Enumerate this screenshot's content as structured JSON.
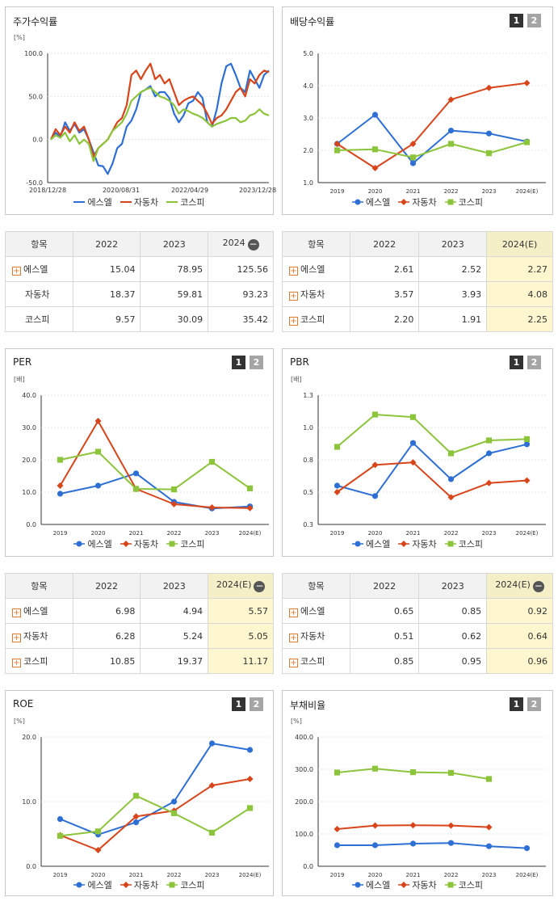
{
  "series_names": [
    "에스엘",
    "자동차",
    "코스피"
  ],
  "colors": {
    "s1": "#2e6fd6",
    "s2": "#d8451a",
    "s3": "#8cc43b"
  },
  "pager": [
    "1",
    "2"
  ],
  "chart_data": [
    {
      "id": "stock-return",
      "type": "line",
      "title": "주가수익률",
      "unit": "[%]",
      "xlabels": [
        "2018/12/28",
        "2020/08/31",
        "2022/04/29",
        "2023/12/28"
      ],
      "ylim": [
        -50,
        100
      ],
      "yticks": [
        "100.0",
        "50.0",
        "0.0",
        "-50.0"
      ],
      "series": [
        {
          "name": "에스엘",
          "values": [
            0,
            8,
            3,
            20,
            10,
            18,
            8,
            12,
            0,
            -15,
            -30,
            -31,
            -40,
            -28,
            -10,
            -5,
            15,
            22,
            35,
            55,
            58,
            62,
            50,
            55,
            55,
            48,
            30,
            20,
            28,
            42,
            45,
            55,
            48,
            20,
            15,
            35,
            65,
            85,
            88,
            75,
            60,
            55,
            80,
            70,
            60,
            75,
            80
          ]
        },
        {
          "name": "자동차",
          "values": [
            0,
            12,
            5,
            15,
            8,
            20,
            10,
            15,
            0,
            -20,
            -10,
            -5,
            0,
            10,
            20,
            25,
            40,
            75,
            80,
            70,
            80,
            88,
            70,
            75,
            65,
            70,
            55,
            40,
            45,
            48,
            50,
            45,
            40,
            30,
            18,
            25,
            28,
            35,
            45,
            55,
            60,
            50,
            70,
            65,
            75,
            80,
            78
          ]
        },
        {
          "name": "코스피",
          "values": [
            0,
            5,
            2,
            8,
            -2,
            5,
            -5,
            0,
            -5,
            -25,
            -10,
            -5,
            0,
            10,
            15,
            20,
            30,
            45,
            50,
            55,
            58,
            60,
            55,
            50,
            48,
            45,
            40,
            30,
            35,
            33,
            30,
            28,
            25,
            20,
            15,
            18,
            20,
            22,
            25,
            25,
            20,
            22,
            28,
            30,
            35,
            30,
            28
          ]
        }
      ]
    },
    {
      "id": "dividend",
      "type": "line",
      "title": "배당수익률",
      "categories": [
        "2019",
        "2020",
        "2021",
        "2022",
        "2023",
        "2024(E)"
      ],
      "ylim": [
        1,
        5
      ],
      "yticks": [
        "5.0",
        "4.0",
        "3.0",
        "2.0",
        "1.0"
      ],
      "series": [
        {
          "name": "에스엘",
          "values": [
            2.2,
            3.1,
            1.6,
            2.61,
            2.52,
            2.27
          ]
        },
        {
          "name": "자동차",
          "values": [
            2.2,
            1.45,
            2.2,
            3.57,
            3.93,
            4.08
          ]
        },
        {
          "name": "코스피",
          "values": [
            2.0,
            2.03,
            1.78,
            2.2,
            1.91,
            2.25
          ]
        }
      ]
    },
    {
      "id": "per",
      "type": "line",
      "title": "PER",
      "unit": "[배]",
      "categories": [
        "2019",
        "2020",
        "2021",
        "2022",
        "2023",
        "2024(E)"
      ],
      "ylim": [
        0,
        40
      ],
      "yticks": [
        "40.0",
        "30.0",
        "20.0",
        "10.0",
        "0.0"
      ],
      "series": [
        {
          "name": "에스엘",
          "values": [
            9.5,
            12,
            15.8,
            6.98,
            4.94,
            5.57
          ]
        },
        {
          "name": "자동차",
          "values": [
            12,
            32,
            11,
            6.28,
            5.24,
            5.05
          ]
        },
        {
          "name": "코스피",
          "values": [
            20,
            22.5,
            11,
            10.85,
            19.37,
            11.17
          ]
        }
      ]
    },
    {
      "id": "pbr",
      "type": "line",
      "title": "PBR",
      "unit": "[배]",
      "categories": [
        "2019",
        "2020",
        "2021",
        "2022",
        "2023",
        "2024(E)"
      ],
      "ylim": [
        0.3,
        1.3
      ],
      "yticks": [
        "1.3",
        "1.0",
        "0.8",
        "0.5",
        "0.3"
      ],
      "series": [
        {
          "name": "에스엘",
          "values": [
            0.6,
            0.52,
            0.93,
            0.65,
            0.85,
            0.92
          ]
        },
        {
          "name": "자동차",
          "values": [
            0.55,
            0.76,
            0.78,
            0.51,
            0.62,
            0.64
          ]
        },
        {
          "name": "코스피",
          "values": [
            0.9,
            1.15,
            1.13,
            0.85,
            0.95,
            0.96
          ]
        }
      ]
    },
    {
      "id": "roe",
      "type": "line",
      "title": "ROE",
      "unit": "[%]",
      "categories": [
        "2019",
        "2020",
        "2021",
        "2022",
        "2023",
        "2024(E)"
      ],
      "ylim": [
        0,
        20
      ],
      "yticks": [
        "20.0",
        "10.0",
        "0.0"
      ],
      "series": [
        {
          "name": "에스엘",
          "values": [
            7.3,
            4.9,
            6.8,
            10,
            19,
            18
          ]
        },
        {
          "name": "자동차",
          "values": [
            4.8,
            2.5,
            7.7,
            8.6,
            12.5,
            13.5
          ]
        },
        {
          "name": "코스피",
          "values": [
            4.7,
            5.4,
            10.9,
            8.2,
            5.2,
            9
          ]
        }
      ]
    },
    {
      "id": "debt",
      "type": "line",
      "title": "부채비율",
      "unit": "[%]",
      "categories": [
        "2019",
        "2020",
        "2021",
        "2022",
        "2023",
        "2024(E)"
      ],
      "ylim": [
        0,
        400
      ],
      "yticks": [
        "400.0",
        "300.0",
        "200.0",
        "100.0",
        "0.0"
      ],
      "series": [
        {
          "name": "에스엘",
          "values": [
            65,
            65,
            70,
            72,
            62,
            56
          ]
        },
        {
          "name": "자동차",
          "values": [
            115,
            126,
            127,
            126,
            121,
            null
          ]
        },
        {
          "name": "코스피",
          "values": [
            290,
            302,
            291,
            289,
            270,
            null
          ]
        }
      ]
    }
  ],
  "tables": [
    {
      "id": "t1",
      "head": [
        "항목",
        "2022",
        "2023",
        "2024"
      ],
      "minus": true,
      "hl": false,
      "rows": [
        {
          "plus": true,
          "name": "에스엘",
          "v": [
            "15.04",
            "78.95",
            "125.56"
          ]
        },
        {
          "plus": false,
          "name": "자동차",
          "v": [
            "18.37",
            "59.81",
            "93.23"
          ]
        },
        {
          "plus": false,
          "name": "코스피",
          "v": [
            "9.57",
            "30.09",
            "35.42"
          ]
        }
      ]
    },
    {
      "id": "t2",
      "head": [
        "항목",
        "2022",
        "2023",
        "2024(E)"
      ],
      "minus": false,
      "hl": true,
      "rows": [
        {
          "plus": true,
          "name": "에스엘",
          "v": [
            "2.61",
            "2.52",
            "2.27"
          ]
        },
        {
          "plus": true,
          "name": "자동차",
          "v": [
            "3.57",
            "3.93",
            "4.08"
          ]
        },
        {
          "plus": true,
          "name": "코스피",
          "v": [
            "2.20",
            "1.91",
            "2.25"
          ]
        }
      ]
    },
    {
      "id": "t3",
      "head": [
        "항목",
        "2022",
        "2023",
        "2024(E)"
      ],
      "minus": true,
      "hl": true,
      "rows": [
        {
          "plus": true,
          "name": "에스엘",
          "v": [
            "6.98",
            "4.94",
            "5.57"
          ]
        },
        {
          "plus": true,
          "name": "자동차",
          "v": [
            "6.28",
            "5.24",
            "5.05"
          ]
        },
        {
          "plus": true,
          "name": "코스피",
          "v": [
            "10.85",
            "19.37",
            "11.17"
          ]
        }
      ]
    },
    {
      "id": "t4",
      "head": [
        "항목",
        "2022",
        "2023",
        "2024(E)"
      ],
      "minus": true,
      "hl": true,
      "rows": [
        {
          "plus": true,
          "name": "에스엘",
          "v": [
            "0.65",
            "0.85",
            "0.92"
          ]
        },
        {
          "plus": true,
          "name": "자동차",
          "v": [
            "0.51",
            "0.62",
            "0.64"
          ]
        },
        {
          "plus": true,
          "name": "코스피",
          "v": [
            "0.85",
            "0.95",
            "0.96"
          ]
        }
      ]
    }
  ]
}
